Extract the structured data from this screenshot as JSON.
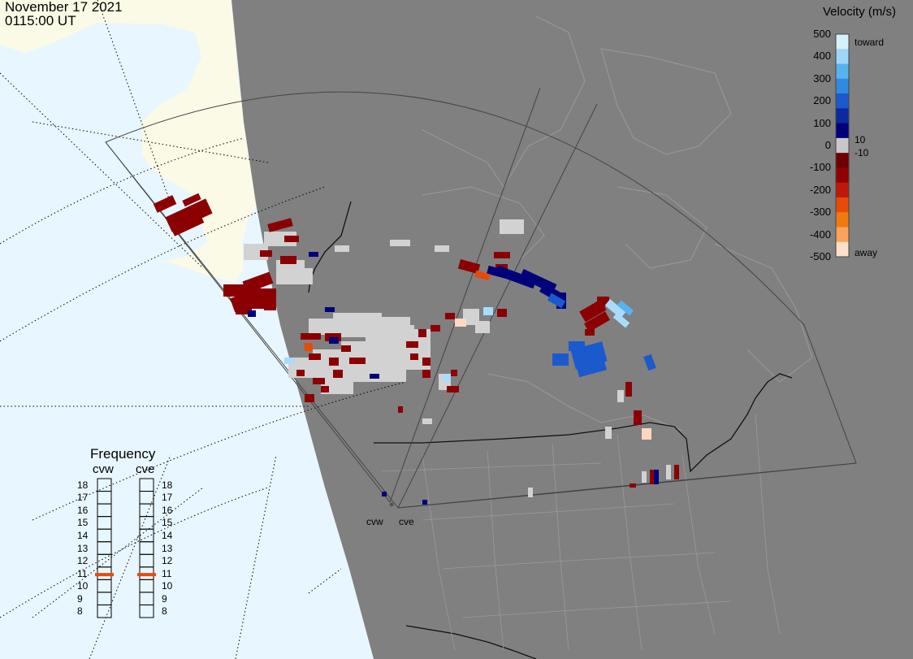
{
  "header": {
    "date": "November 17 2021",
    "time": "0115:00 UT"
  },
  "colorbar": {
    "title": "Velocity (m/s)",
    "ticks": [
      "500",
      "400",
      "300",
      "200",
      "100",
      "0",
      "-100",
      "-200",
      "-300",
      "-400",
      "-500"
    ],
    "extra_labels": {
      "toward": "toward",
      "p10": "10",
      "m10": "-10",
      "away": "away"
    },
    "colors": [
      "#fde0c8",
      "#f9a45a",
      "#f07a10",
      "#e84a08",
      "#c01808",
      "#900000",
      "#6e0000",
      "#c8c8c8",
      "#00007a",
      "#0b2aa0",
      "#1a5acc",
      "#2f8ae0",
      "#58b2f0",
      "#9ed6f8",
      "#d6f0fc"
    ]
  },
  "frequency_panel": {
    "title": "Frequency",
    "radars": [
      {
        "name": "cvw",
        "current_mhz": 10.9
      },
      {
        "name": "cve",
        "current_mhz": 10.9
      }
    ],
    "levels": [
      "18",
      "17",
      "16",
      "15",
      "14",
      "13",
      "12",
      "11",
      "10",
      "9",
      "8"
    ]
  },
  "sites": [
    "cvw",
    "cve"
  ],
  "colors": {
    "ocean": "#e8f6ff",
    "land_day": "#fafae6",
    "night": "#808080",
    "gridline": "#555555",
    "marker": "#e84a08"
  }
}
